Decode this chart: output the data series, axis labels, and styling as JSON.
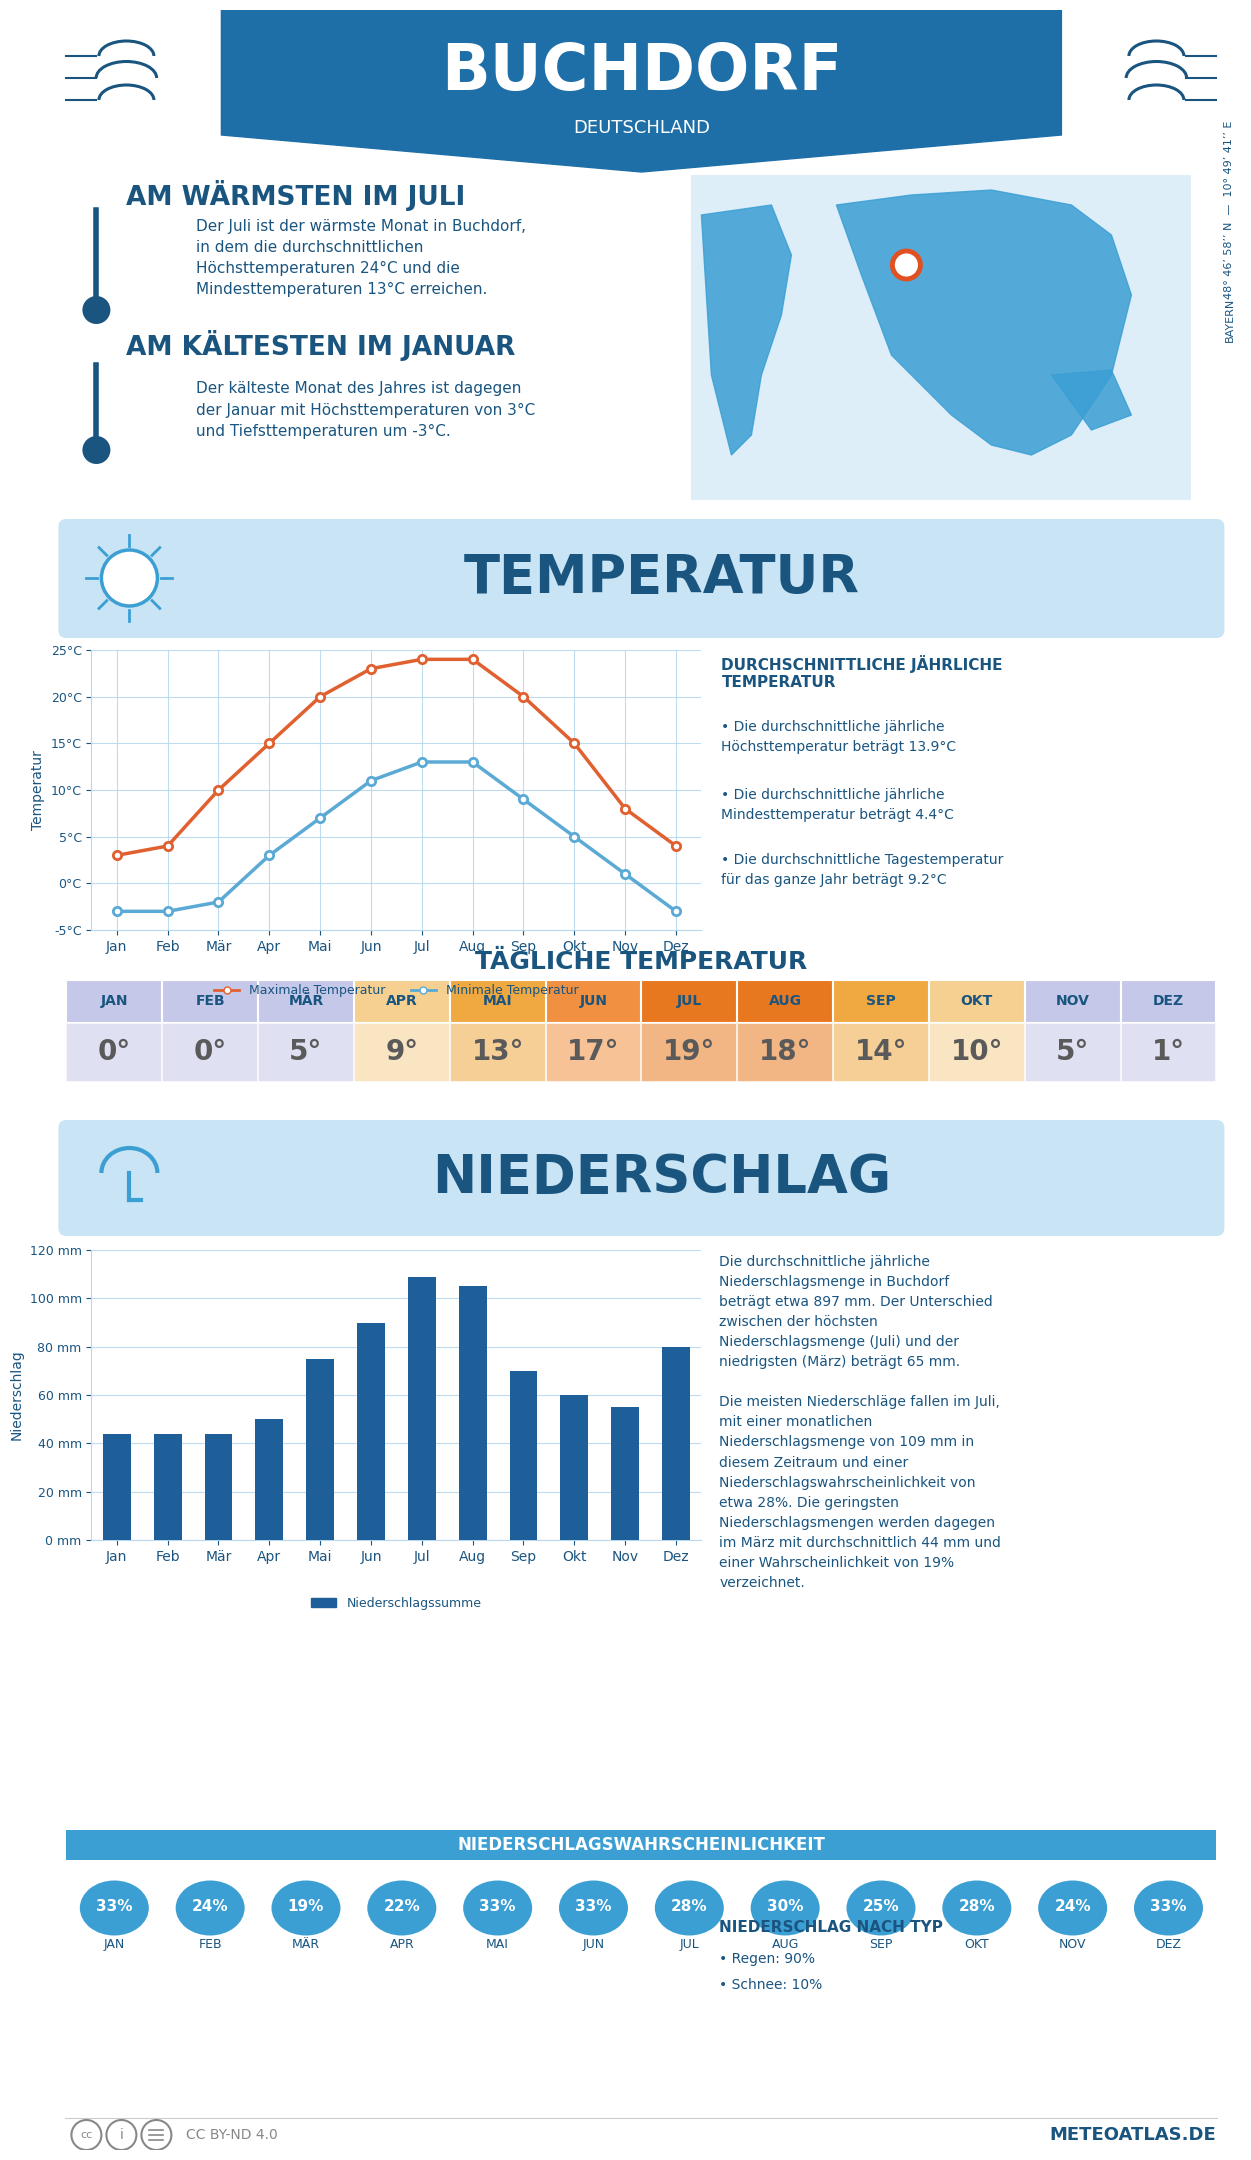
{
  "title": "BUCHDORF",
  "subtitle": "DEUTSCHLAND",
  "coord_text": "48° 46’ 58’’ N  —  10° 49’ 41’’ E",
  "state_text": "BAYERN",
  "warm_title": "AM WÄRMSTEN IM JULI",
  "warm_text": "Der Juli ist der wärmste Monat in Buchdorf,\nin dem die durchschnittlichen\nHöchsttemperaturen 24°C und die\nMindesttemperaturen 13°C erreichen.",
  "cold_title": "AM KÄLTESTEN IM JANUAR",
  "cold_text": "Der kälteste Monat des Jahres ist dagegen\nder Januar mit Höchsttemperaturen von 3°C\nund Tiefsttemperaturen um -3°C.",
  "temp_section_title": "TEMPERATUR",
  "months": [
    "Jan",
    "Feb",
    "Mär",
    "Apr",
    "Mai",
    "Jun",
    "Jul",
    "Aug",
    "Sep",
    "Okt",
    "Nov",
    "Dez"
  ],
  "max_temps": [
    3,
    4,
    10,
    15,
    20,
    23,
    24,
    24,
    20,
    15,
    8,
    4
  ],
  "min_temps": [
    -3,
    -3,
    -2,
    3,
    7,
    11,
    13,
    13,
    9,
    5,
    1,
    -3
  ],
  "temp_yticks": [
    -5,
    0,
    5,
    10,
    15,
    20,
    25
  ],
  "daily_temps": [
    0,
    0,
    5,
    9,
    13,
    17,
    19,
    18,
    14,
    10,
    5,
    1
  ],
  "daily_months": [
    "JAN",
    "FEB",
    "MÄR",
    "APR",
    "MAI",
    "JUN",
    "JUL",
    "AUG",
    "SEP",
    "OKT",
    "NOV",
    "DEZ"
  ],
  "avg_annual_title": "DURCHSCHNITTLICHE JÄHRLICHE\nTEMPERATUR",
  "avg_max_text": "Die durchschnittliche jährliche\nHöchsttemperatur beträgt 13.9°C",
  "avg_min_text": "Die durchschnittliche jährliche\nMindesttemperatur beträgt 4.4°C",
  "avg_day_text": "Die durchschnittliche Tagestemperatur\nfür das ganze Jahr beträgt 9.2°C",
  "precip_section_title": "NIEDERSCHLAG",
  "precip_values": [
    44,
    44,
    44,
    50,
    75,
    90,
    109,
    105,
    70,
    60,
    55,
    80
  ],
  "precip_yticks": [
    0,
    20,
    40,
    60,
    80,
    100,
    120
  ],
  "precip_text": "Die durchschnittliche jährliche\nNiederschlagsmenge in Buchdorf\nbeträgt etwa 897 mm. Der Unterschied\nzwischen der höchsten\nNiederschlagsmenge (Juli) und der\nniedrigsten (März) beträgt 65 mm.\n\nDie meisten Niederschläge fallen im Juli,\nmit einer monatlichen\nNiederschlagsmenge von 109 mm in\ndiesem Zeitraum und einer\nNiederschlagswahrscheinlichkeit von\netwa 28%. Die geringsten\nNiederschlagsmengen werden dagegen\nim März mit durchschnittlich 44 mm und\neiner Wahrscheinlichkeit von 19%\nverzeichnet.",
  "precip_prob_title": "NIEDERSCHLAGSWAHRSCHEINLICHKEIT",
  "precip_prob": [
    33,
    24,
    19,
    22,
    33,
    33,
    28,
    30,
    25,
    28,
    24,
    33
  ],
  "precip_type_title": "NIEDERSCHLAG NACH TYP",
  "precip_rain": "Regen: 90%",
  "precip_snow": "Schnee: 10%",
  "legend_max": "Maximale Temperatur",
  "legend_min": "Minimale Temperatur",
  "legend_precip": "Niederschlagssumme",
  "bg_color": "#ffffff",
  "header_bg": "#1e6fa8",
  "section_bg_light": "#c8e4f5",
  "dark_blue": "#1a5580",
  "medium_blue": "#3b9fd4",
  "orange_line": "#e06030",
  "blue_line": "#5aaad5",
  "bar_color": "#1e5f9a",
  "daily_colors": [
    "#c5c8e8",
    "#c5c8e8",
    "#c5c8e8",
    "#f5d090",
    "#f0a840",
    "#f09040",
    "#e87820",
    "#e87820",
    "#f0a840",
    "#f5d090",
    "#c5c8e8",
    "#c5c8e8"
  ],
  "footer_cc": "CC BY-ND 4.0",
  "footer_site": "METEOATLAS.DE",
  "tagliche_title": "TÄGLICHE TEMPERATUR"
}
